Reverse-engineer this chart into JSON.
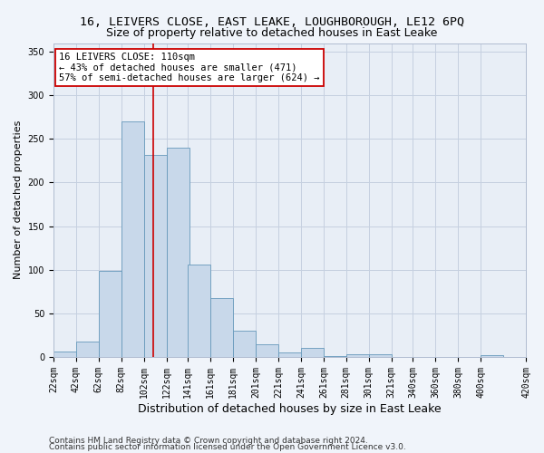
{
  "title": "16, LEIVERS CLOSE, EAST LEAKE, LOUGHBOROUGH, LE12 6PQ",
  "subtitle": "Size of property relative to detached houses in East Leake",
  "xlabel": "Distribution of detached houses by size in East Leake",
  "ylabel": "Number of detached properties",
  "bar_color": "#c8d8ea",
  "bar_edge_color": "#6699bb",
  "grid_color": "#c5d0e0",
  "bg_color": "#e8eef6",
  "fig_bg_color": "#f0f4fa",
  "vline_x": 110,
  "vline_color": "#cc0000",
  "annotation_text": "16 LEIVERS CLOSE: 110sqm\n← 43% of detached houses are smaller (471)\n57% of semi-detached houses are larger (624) →",
  "annotation_box_color": "#ffffff",
  "annotation_box_edge": "#cc0000",
  "bins_left": [
    22,
    42,
    62,
    82,
    102,
    122,
    141,
    161,
    181,
    201,
    221,
    241,
    261,
    281,
    301,
    321,
    340,
    360,
    380,
    400
  ],
  "bin_width": 20,
  "bar_heights": [
    6,
    18,
    99,
    270,
    232,
    240,
    106,
    68,
    30,
    14,
    5,
    10,
    1,
    3,
    3,
    0,
    0,
    0,
    0,
    2
  ],
  "ylim": [
    0,
    360
  ],
  "yticks": [
    0,
    50,
    100,
    150,
    200,
    250,
    300,
    350
  ],
  "xtick_labels": [
    "22sqm",
    "42sqm",
    "62sqm",
    "82sqm",
    "102sqm",
    "122sqm",
    "141sqm",
    "161sqm",
    "181sqm",
    "201sqm",
    "221sqm",
    "241sqm",
    "261sqm",
    "281sqm",
    "301sqm",
    "321sqm",
    "340sqm",
    "360sqm",
    "380sqm",
    "400sqm",
    "420sqm"
  ],
  "footer1": "Contains HM Land Registry data © Crown copyright and database right 2024.",
  "footer2": "Contains public sector information licensed under the Open Government Licence v3.0.",
  "title_fontsize": 9.5,
  "subtitle_fontsize": 9,
  "xlabel_fontsize": 9,
  "ylabel_fontsize": 8,
  "tick_fontsize": 7,
  "annotation_fontsize": 7.5,
  "footer_fontsize": 6.5
}
